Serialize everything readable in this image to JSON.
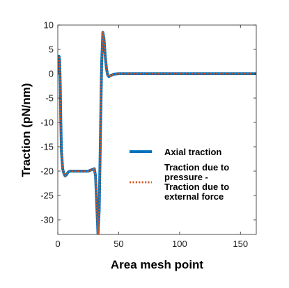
{
  "chart_data": {
    "type": "line",
    "xlabel": "Area mesh point",
    "ylabel": "Traction (pN/nm)",
    "xlim": [
      0,
      163
    ],
    "ylim": [
      -33,
      10
    ],
    "x_ticks": [
      0,
      50,
      100,
      150
    ],
    "y_ticks": [
      10,
      5,
      0,
      -5,
      -10,
      -15,
      -20,
      -25,
      -30
    ],
    "grid": false,
    "legend_position": "right-middle",
    "series": [
      {
        "name": "Axial traction",
        "color": "#0072BD",
        "style": "solid",
        "x": [
          0,
          0.5,
          1,
          1.5,
          2,
          2.5,
          3,
          4,
          5,
          6,
          7,
          8,
          9,
          10,
          12,
          15,
          20,
          25,
          28,
          30,
          31,
          32,
          33,
          34,
          35,
          36,
          37,
          38,
          39,
          40,
          41,
          42,
          44,
          46,
          50,
          60,
          80,
          100,
          120,
          140,
          163
        ],
        "y": [
          0,
          3.2,
          3.6,
          2.8,
          -2,
          -10,
          -16,
          -19.5,
          -20.5,
          -21,
          -20.8,
          -20.4,
          -20.1,
          -20,
          -20,
          -20,
          -20,
          -20,
          -19.7,
          -19.5,
          -21,
          -27,
          -33,
          -28,
          -13,
          2,
          8.5,
          7,
          3.5,
          1,
          -0.3,
          -0.6,
          -0.3,
          -0.1,
          0,
          0,
          0,
          0,
          0,
          0,
          0
        ]
      },
      {
        "name": "Traction due to pressure - Traction due to external force",
        "color": "#D95319",
        "style": "dotted",
        "x": [
          0,
          0.5,
          1,
          1.5,
          2,
          2.5,
          3,
          4,
          5,
          6,
          7,
          8,
          9,
          10,
          12,
          15,
          20,
          25,
          28,
          30,
          31,
          32,
          33,
          34,
          35,
          36,
          37,
          38,
          39,
          40,
          41,
          42,
          44,
          46,
          50,
          60,
          80,
          100,
          120,
          140,
          163
        ],
        "y": [
          0,
          3.2,
          3.6,
          2.8,
          -2,
          -10,
          -16,
          -19.5,
          -20.5,
          -21,
          -20.8,
          -20.4,
          -20.1,
          -20,
          -20,
          -20,
          -20,
          -20,
          -19.7,
          -19.5,
          -21,
          -27,
          -33,
          -28,
          -13,
          2,
          8.5,
          7,
          3.5,
          1,
          -0.3,
          -0.6,
          -0.3,
          -0.1,
          0,
          0,
          0,
          0,
          0,
          0,
          0
        ]
      }
    ],
    "legend": {
      "entries": [
        {
          "lines": [
            "Axial traction"
          ]
        },
        {
          "lines": [
            "Traction due to",
            "pressure -",
            "Traction due to",
            "external force"
          ]
        }
      ]
    }
  }
}
